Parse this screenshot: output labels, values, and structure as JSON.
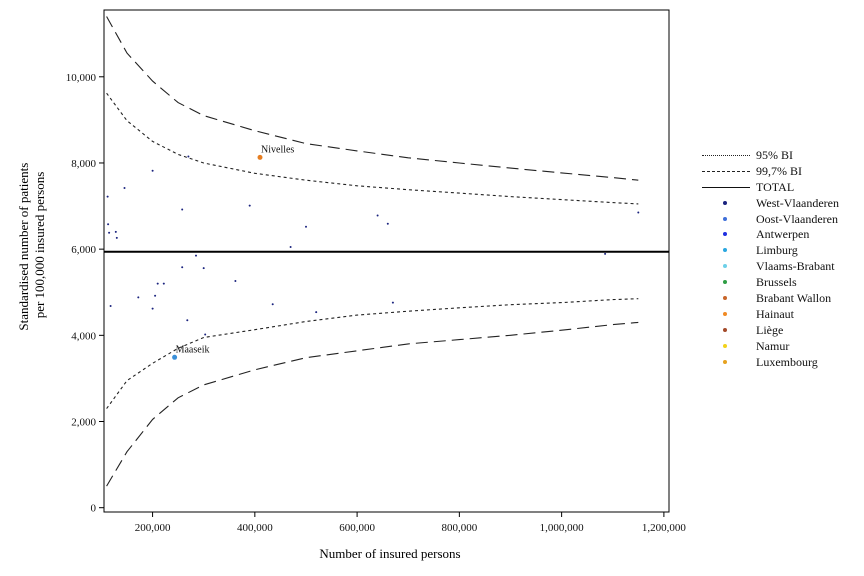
{
  "chart_data": {
    "type": "scatter",
    "xlabel": "Number of insured persons",
    "ylabel": [
      "Standardised number of patients",
      "per 100,000 insured persons"
    ],
    "xlim": [
      105000,
      1210000
    ],
    "ylim": [
      -100,
      11550
    ],
    "xticks": [
      200000,
      400000,
      600000,
      800000,
      1000000,
      1200000
    ],
    "xtick_labels": [
      "200,000",
      "400,000",
      "600,000",
      "800,000",
      "1,000,000",
      "1,200,000"
    ],
    "yticks": [
      0,
      2000,
      4000,
      6000,
      8000,
      10000
    ],
    "ytick_labels": [
      "0",
      "2,000",
      "4,000",
      "6,000",
      "8,000",
      "10,000"
    ],
    "total": 5940,
    "bands": {
      "ci95_upper": [
        [
          110000,
          9620
        ],
        [
          150000,
          8980
        ],
        [
          200000,
          8500
        ],
        [
          250000,
          8200
        ],
        [
          300000,
          8000
        ],
        [
          400000,
          7760
        ],
        [
          500000,
          7600
        ],
        [
          600000,
          7470
        ],
        [
          700000,
          7380
        ],
        [
          800000,
          7300
        ],
        [
          900000,
          7220
        ],
        [
          1000000,
          7150
        ],
        [
          1100000,
          7080
        ],
        [
          1150000,
          7050
        ]
      ],
      "ci95_lower": [
        [
          110000,
          2300
        ],
        [
          150000,
          2950
        ],
        [
          200000,
          3350
        ],
        [
          250000,
          3700
        ],
        [
          300000,
          3950
        ],
        [
          400000,
          4130
        ],
        [
          500000,
          4320
        ],
        [
          600000,
          4470
        ],
        [
          700000,
          4560
        ],
        [
          800000,
          4640
        ],
        [
          900000,
          4710
        ],
        [
          1000000,
          4760
        ],
        [
          1100000,
          4830
        ],
        [
          1150000,
          4850
        ]
      ],
      "ci997_upper": [
        [
          110000,
          11400
        ],
        [
          150000,
          10550
        ],
        [
          200000,
          9900
        ],
        [
          250000,
          9400
        ],
        [
          300000,
          9100
        ],
        [
          400000,
          8750
        ],
        [
          500000,
          8450
        ],
        [
          600000,
          8280
        ],
        [
          700000,
          8120
        ],
        [
          800000,
          8000
        ],
        [
          900000,
          7880
        ],
        [
          1000000,
          7770
        ],
        [
          1100000,
          7660
        ],
        [
          1150000,
          7600
        ]
      ],
      "ci997_lower": [
        [
          110000,
          500
        ],
        [
          150000,
          1300
        ],
        [
          200000,
          2050
        ],
        [
          250000,
          2550
        ],
        [
          300000,
          2850
        ],
        [
          400000,
          3200
        ],
        [
          500000,
          3480
        ],
        [
          600000,
          3640
        ],
        [
          700000,
          3800
        ],
        [
          800000,
          3900
        ],
        [
          900000,
          4000
        ],
        [
          1000000,
          4120
        ],
        [
          1100000,
          4250
        ],
        [
          1150000,
          4300
        ]
      ]
    },
    "points": [
      [
        113000,
        6580
      ],
      [
        115000,
        6380
      ],
      [
        112000,
        7220
      ],
      [
        128000,
        6400
      ],
      [
        130000,
        6260
      ],
      [
        145000,
        7420
      ],
      [
        200000,
        7820
      ],
      [
        270000,
        8150
      ],
      [
        258000,
        6920
      ],
      [
        390000,
        7010
      ],
      [
        470000,
        6050
      ],
      [
        500000,
        6520
      ],
      [
        640000,
        6780
      ],
      [
        660000,
        6590
      ],
      [
        1150000,
        6850
      ],
      [
        1085000,
        5890
      ],
      [
        118000,
        4680
      ],
      [
        172000,
        4880
      ],
      [
        200000,
        4620
      ],
      [
        210000,
        5200
      ],
      [
        222000,
        5200
      ],
      [
        205000,
        4920
      ],
      [
        258000,
        5580
      ],
      [
        285000,
        5850
      ],
      [
        300000,
        5560
      ],
      [
        362000,
        5260
      ],
      [
        268000,
        4350
      ],
      [
        303000,
        4020
      ],
      [
        435000,
        4720
      ],
      [
        520000,
        4540
      ],
      [
        670000,
        4760
      ]
    ],
    "highlighted": [
      {
        "label": "Nivelles",
        "x": 410000,
        "y": 8130,
        "color": "#e67e22"
      },
      {
        "label": "Maaseik",
        "x": 243000,
        "y": 3490,
        "color": "#3a8fd8"
      }
    ],
    "legend": [
      {
        "label": "95% BI",
        "kind": "dashed-short",
        "color": "#222222"
      },
      {
        "label": "99,7% BI",
        "kind": "dashed-long",
        "color": "#222222"
      },
      {
        "label": "TOTAL",
        "kind": "solid",
        "color": "#111111"
      },
      {
        "label": "West-Vlaanderen",
        "kind": "dot",
        "color": "#1a237e"
      },
      {
        "label": "Oost-Vlaanderen",
        "kind": "dot",
        "color": "#3f6fd9"
      },
      {
        "label": "Antwerpen",
        "kind": "dot",
        "color": "#1f2fe0"
      },
      {
        "label": "Limburg",
        "kind": "dot",
        "color": "#2aa7e0"
      },
      {
        "label": "Vlaams-Brabant",
        "kind": "dot",
        "color": "#6dd0e8"
      },
      {
        "label": "Brussels",
        "kind": "dot",
        "color": "#2e9e44"
      },
      {
        "label": "Brabant Wallon",
        "kind": "dot",
        "color": "#c8662a"
      },
      {
        "label": "Hainaut",
        "kind": "dot",
        "color": "#f08a24"
      },
      {
        "label": "Liège",
        "kind": "dot",
        "color": "#a34a2a"
      },
      {
        "label": "Namur",
        "kind": "dot",
        "color": "#f2d21a"
      },
      {
        "label": "Luxembourg",
        "kind": "dot",
        "color": "#e6a21f"
      }
    ]
  }
}
